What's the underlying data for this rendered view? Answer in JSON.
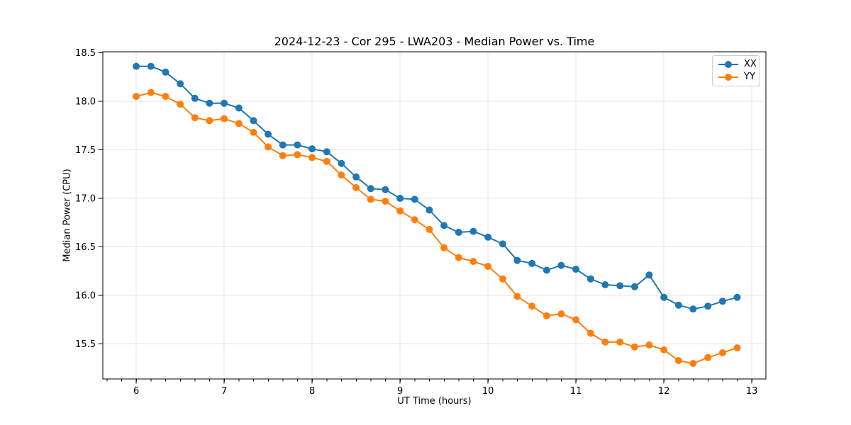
{
  "window": {
    "background": "#ffffff"
  },
  "chart_data": {
    "type": "line",
    "title": "2024-12-23 - Cor 295 - LWA203 - Median Power vs. Time",
    "xlabel": "UT Time (hours)",
    "ylabel": "Median Power (CPU)",
    "xlim": [
      5.62,
      13.16
    ],
    "ylim": [
      15.14,
      18.51
    ],
    "xticks": [
      6,
      7,
      8,
      9,
      10,
      11,
      12,
      13
    ],
    "yticks": [
      15.5,
      16.0,
      16.5,
      17.0,
      17.5,
      18.0,
      18.5
    ],
    "x_minor_interval": 0.1667,
    "grid": true,
    "grid_color": "#e4e4e4",
    "axis_color": "#000000",
    "legend_position": "upper right",
    "x": [
      6.0,
      6.167,
      6.333,
      6.5,
      6.667,
      6.833,
      7.0,
      7.167,
      7.333,
      7.5,
      7.667,
      7.833,
      8.0,
      8.167,
      8.333,
      8.5,
      8.667,
      8.833,
      9.0,
      9.167,
      9.333,
      9.5,
      9.667,
      9.833,
      10.0,
      10.167,
      10.333,
      10.5,
      10.667,
      10.833,
      11.0,
      11.167,
      11.333,
      11.5,
      11.667,
      11.833,
      12.0,
      12.167,
      12.333,
      12.5,
      12.667,
      12.833
    ],
    "series": [
      {
        "name": "XX",
        "color": "#1f77b4",
        "values": [
          18.36,
          18.36,
          18.3,
          18.18,
          18.03,
          17.98,
          17.98,
          17.93,
          17.8,
          17.66,
          17.55,
          17.55,
          17.51,
          17.48,
          17.36,
          17.22,
          17.1,
          17.09,
          17.0,
          16.99,
          16.88,
          16.72,
          16.65,
          16.66,
          16.6,
          16.53,
          16.36,
          16.33,
          16.26,
          16.31,
          16.27,
          16.17,
          16.11,
          16.1,
          16.09,
          16.21,
          15.98,
          15.9,
          15.86,
          15.89,
          15.94,
          15.98
        ]
      },
      {
        "name": "YY",
        "color": "#ff7f0e",
        "values": [
          18.05,
          18.09,
          18.05,
          17.97,
          17.83,
          17.8,
          17.82,
          17.77,
          17.68,
          17.53,
          17.44,
          17.45,
          17.42,
          17.38,
          17.24,
          17.11,
          16.99,
          16.97,
          16.87,
          16.78,
          16.68,
          16.49,
          16.39,
          16.35,
          16.3,
          16.17,
          15.99,
          15.89,
          15.79,
          15.81,
          15.75,
          15.61,
          15.52,
          15.52,
          15.47,
          15.49,
          15.44,
          15.33,
          15.3,
          15.36,
          15.41,
          15.46
        ]
      }
    ]
  }
}
